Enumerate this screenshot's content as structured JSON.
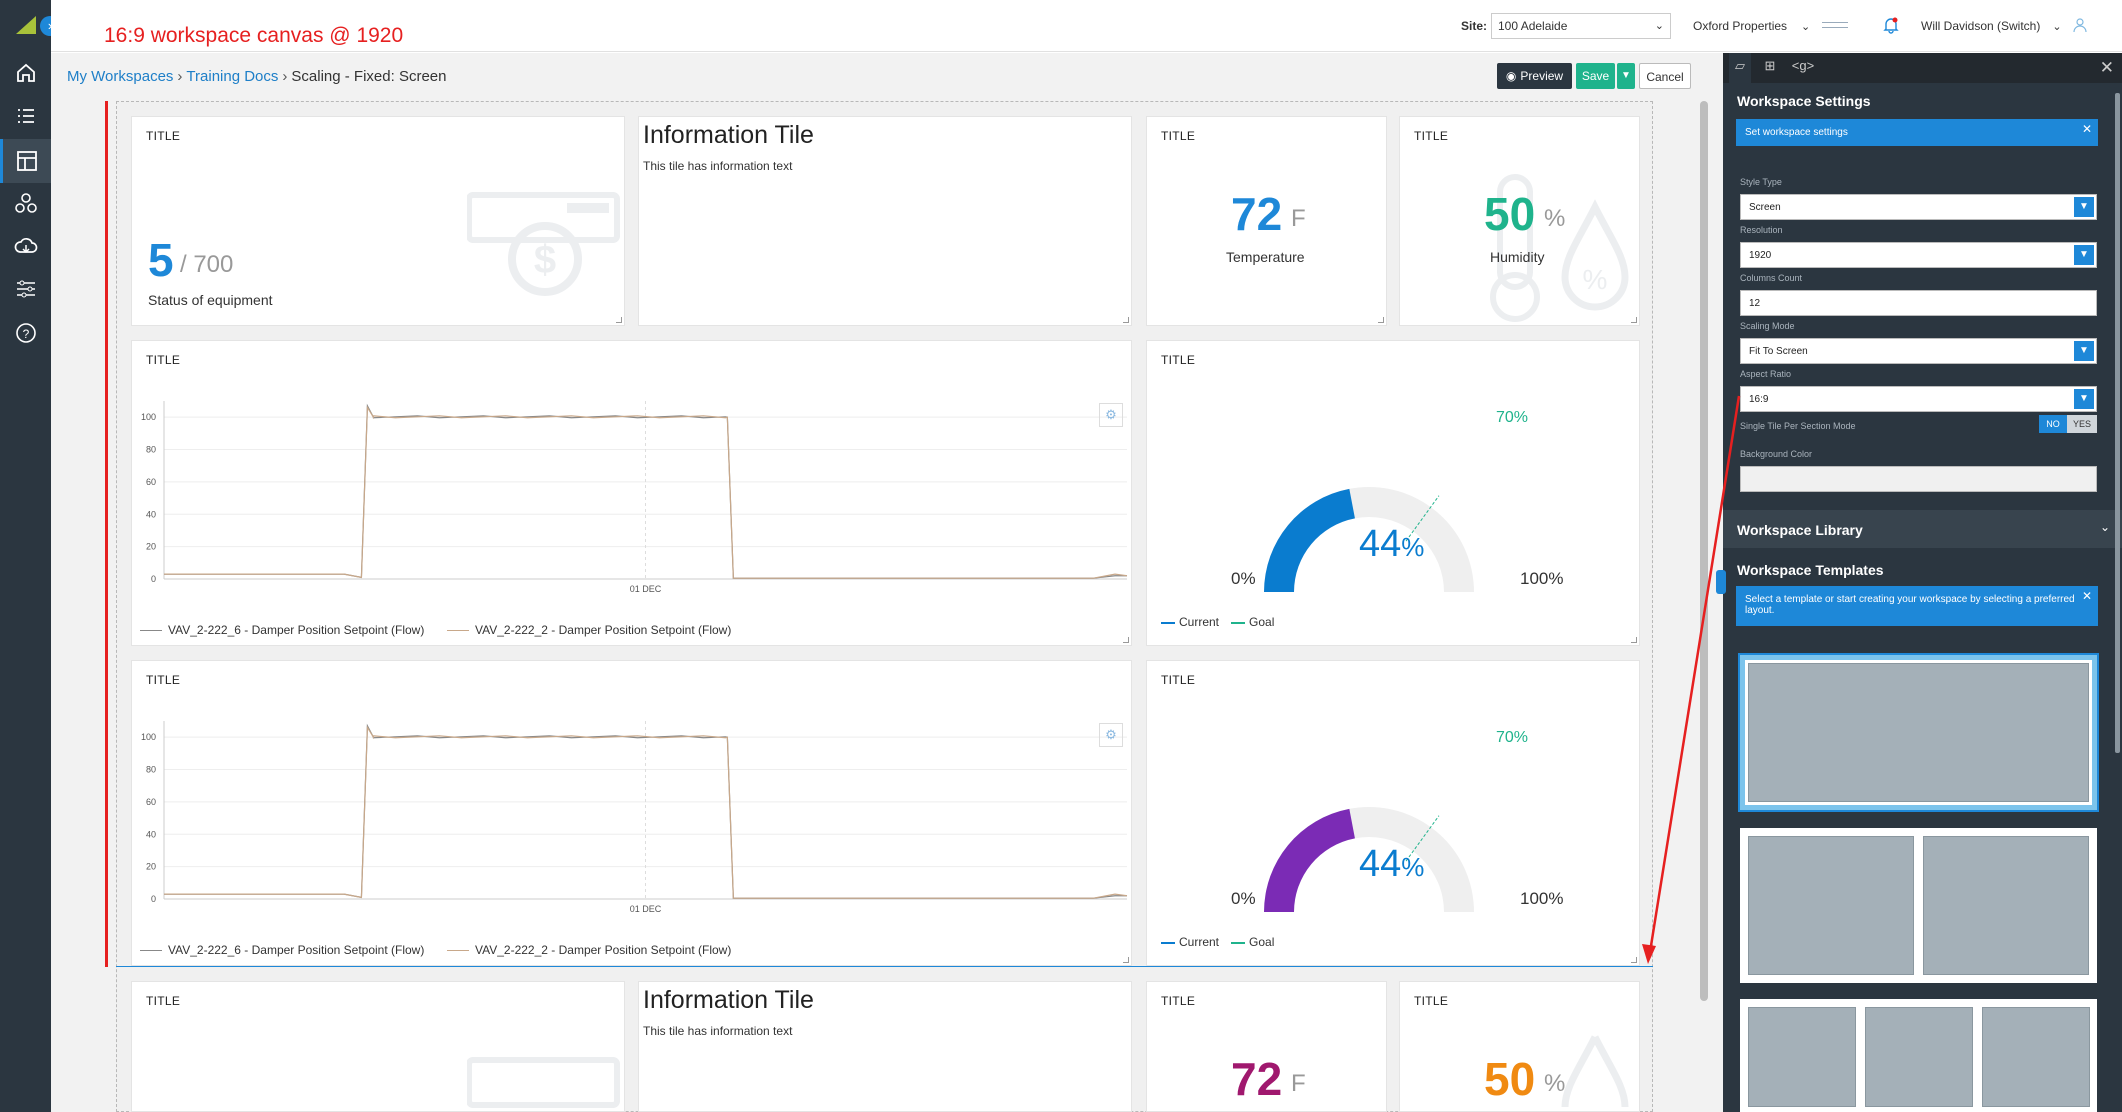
{
  "annotation": "16:9 workspace canvas @ 1920",
  "colors": {
    "accent": "#1e88d8",
    "temperature": "#1e88d8",
    "humidity": "#1fb38c",
    "gauge_primary": "#0a7ccf",
    "gauge_secondary": "#7b2bb5",
    "temperature2": "#a0186e",
    "humidity2": "#f08a12",
    "save": "#1fb38c",
    "sidebar": "#2b3640",
    "annotation": "#e62020"
  },
  "nav_icons": [
    "home-icon",
    "list-icon",
    "layout-icon",
    "network-icon",
    "cloud-icon",
    "sliders-icon",
    "help-icon"
  ],
  "topbar": {
    "site_label": "Site:",
    "site_value": "100 Adelaide",
    "org": "Oxford Properties",
    "user": "Will Davidson (Switch)"
  },
  "breadcrumb": {
    "items": [
      "My Workspaces",
      "Training Docs"
    ],
    "current": "Scaling - Fixed: Screen",
    "separator": "›"
  },
  "toolbar": {
    "preview": "Preview",
    "save": "Save",
    "cancel": "Cancel"
  },
  "tiles": {
    "status": {
      "title": "TITLE",
      "value": "5",
      "total": "/ 700",
      "label": "Status of equipment"
    },
    "info": {
      "title": "Information Tile",
      "text": "This tile has information text"
    },
    "temperature": {
      "title": "TITLE",
      "value": "72",
      "unit": "F",
      "label": "Temperature"
    },
    "humidity": {
      "title": "TITLE",
      "value": "50",
      "unit": "%",
      "label": "Humidity"
    },
    "chart1": {
      "title": "TITLE"
    },
    "chart2": {
      "title": "TITLE"
    },
    "gauge1": {
      "title": "TITLE",
      "value": "44",
      "unit": "%",
      "goal": "70%",
      "min": "0%",
      "max": "100%",
      "legend_current": "Current",
      "legend_goal": "Goal"
    },
    "gauge2": {
      "title": "TITLE",
      "value": "44",
      "unit": "%",
      "goal": "70%",
      "min": "0%",
      "max": "100%",
      "legend_current": "Current",
      "legend_goal": "Goal"
    },
    "status_b": {
      "title": "TITLE"
    },
    "info_b": {
      "title": "Information Tile",
      "text": "This tile has information text"
    },
    "temperature_b": {
      "title": "TITLE",
      "value": "72",
      "unit": "F"
    },
    "humidity_b": {
      "title": "TITLE",
      "value": "50",
      "unit": "%"
    }
  },
  "chart_data": [
    {
      "type": "line",
      "x_tick": "01 DEC",
      "yticks": [
        0,
        20,
        40,
        60,
        80,
        100
      ],
      "ylim": [
        0,
        110
      ],
      "series": [
        {
          "name": "VAV_2-222_6 - Damper Position Setpoint (Flow)",
          "color": "#888888"
        },
        {
          "name": "VAV_2-222_2 - Damper Position Setpoint (Flow)",
          "color": "#c8a88a"
        }
      ],
      "points": [
        [
          0,
          1
        ],
        [
          0.04,
          2
        ],
        [
          0.1,
          1
        ],
        [
          0.18,
          2
        ],
        [
          0.3,
          1
        ],
        [
          0.38,
          1
        ],
        [
          0.39,
          108
        ],
        [
          0.4,
          100
        ],
        [
          0.5,
          100
        ],
        [
          0.6,
          101
        ],
        [
          0.7,
          100
        ],
        [
          0.8,
          100
        ],
        [
          0.9,
          101
        ],
        [
          0.95,
          100
        ],
        [
          1.0,
          100
        ]
      ],
      "points_tail": [
        [
          0,
          1
        ],
        [
          0.4,
          0
        ],
        [
          0.8,
          1
        ],
        [
          1.0,
          3
        ]
      ]
    },
    {
      "type": "line",
      "x_tick": "01 DEC",
      "yticks": [
        0,
        20,
        40,
        60,
        80,
        100
      ],
      "ylim": [
        0,
        110
      ],
      "series": [
        {
          "name": "VAV_2-222_6 - Damper Position Setpoint (Flow)",
          "color": "#888888"
        },
        {
          "name": "VAV_2-222_2 - Damper Position Setpoint (Flow)",
          "color": "#c8a88a"
        }
      ]
    }
  ],
  "gauges": [
    {
      "current": 44,
      "goal": 70
    },
    {
      "current": 44,
      "goal": 70
    }
  ],
  "panel": {
    "tabs": [
      "shape-icon",
      "frame-icon",
      "<g>"
    ],
    "settings_title": "Workspace Settings",
    "settings_info": "Set workspace settings",
    "style_type_label": "Style Type",
    "style_type": "Screen",
    "resolution_label": "Resolution",
    "resolution": "1920",
    "columns_label": "Columns Count",
    "columns": "12",
    "scaling_label": "Scaling Mode",
    "scaling": "Fit To Screen",
    "aspect_label": "Aspect Ratio",
    "aspect": "16:9",
    "single_tile_label": "Single Tile Per Section Mode",
    "toggle_no": "NO",
    "toggle_yes": "YES",
    "bg_label": "Background Color",
    "library_title": "Workspace Library",
    "templates_title": "Workspace Templates",
    "templates_info": "Select a template or start creating your workspace by selecting a preferred layout."
  }
}
